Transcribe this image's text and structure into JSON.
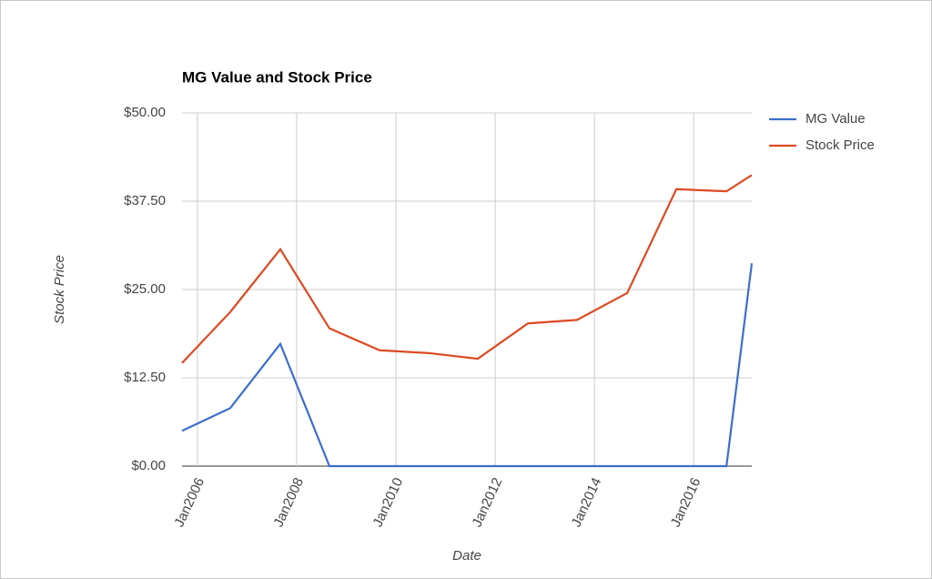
{
  "chart_data": {
    "type": "line",
    "title": "MG Value and Stock Price",
    "x_label": "Date",
    "y_label": "Stock Price",
    "x": [
      2005.69,
      2006.66,
      2007.67,
      2008.66,
      2009.67,
      2010.66,
      2011.65,
      2012.66,
      2013.65,
      2014.66,
      2015.65,
      2016.66,
      2017.17
    ],
    "series": [
      {
        "name": "MG Value",
        "color": "#3c6fcd",
        "values": [
          5.0,
          8.2,
          17.3,
          0,
          0,
          0,
          0,
          0,
          0,
          0,
          0,
          0,
          28.7
        ]
      },
      {
        "name": "Stock Price",
        "color": "#dc4a22",
        "values": [
          14.6,
          21.8,
          30.7,
          19.5,
          16.4,
          16.0,
          15.2,
          20.2,
          20.7,
          24.5,
          39.2,
          38.9,
          41.2
        ]
      }
    ],
    "xlim": [
      2005.69,
      2017.17
    ],
    "xticks": [
      {
        "value": 2006,
        "label": "Jan2006"
      },
      {
        "value": 2008,
        "label": "Jan2008"
      },
      {
        "value": 2010,
        "label": "Jan2010"
      },
      {
        "value": 2012,
        "label": "Jan2012"
      },
      {
        "value": 2014,
        "label": "Jan2014"
      },
      {
        "value": 2016,
        "label": "Jan2016"
      }
    ],
    "ylim": [
      0,
      50
    ],
    "yticks": [
      {
        "value": 0,
        "label": "$0.00"
      },
      {
        "value": 12.5,
        "label": "$12.50"
      },
      {
        "value": 25,
        "label": "$25.00"
      },
      {
        "value": 37.5,
        "label": "$37.50"
      },
      {
        "value": 50,
        "label": "$50.00"
      }
    ],
    "grid": true,
    "legend": "right"
  }
}
